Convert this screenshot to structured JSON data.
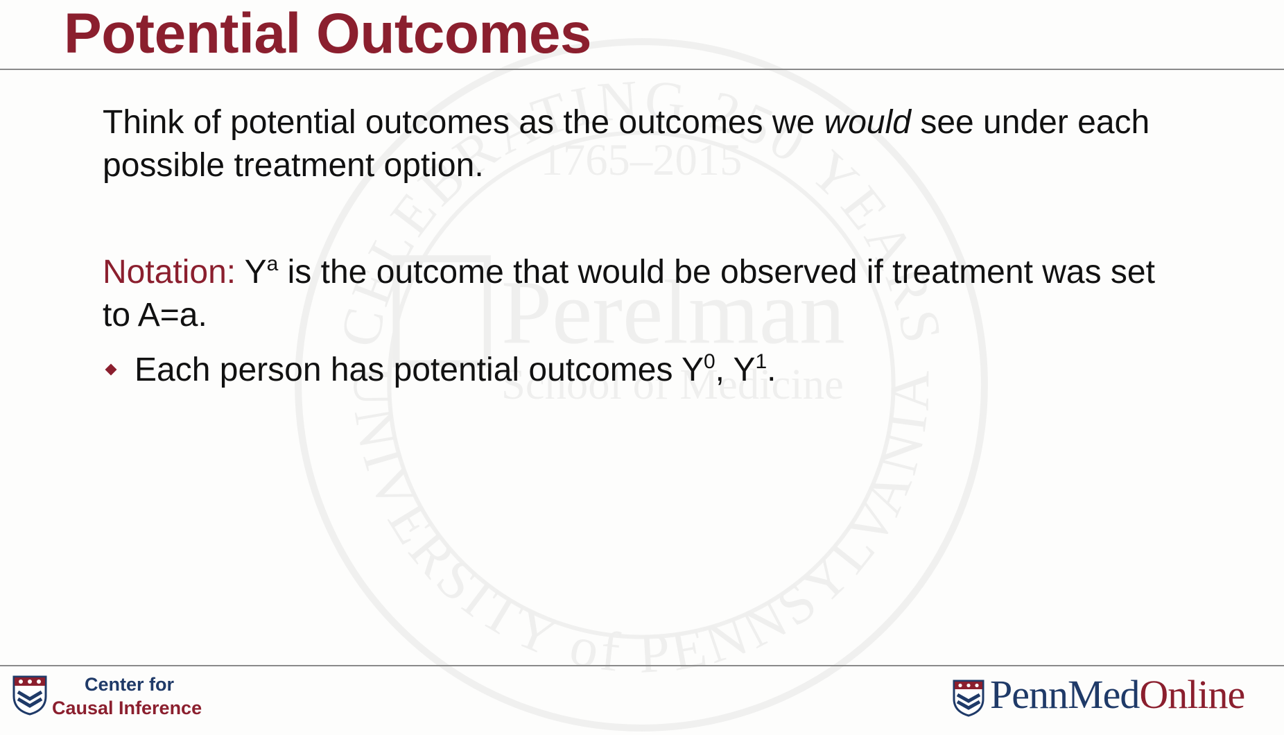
{
  "slide": {
    "title": "Potential Outcomes",
    "paragraph1": {
      "before": "Think of potential outcomes as the outcomes we ",
      "emphasis": "would",
      "after": " see under each possible treatment option."
    },
    "notation": {
      "label": "Notation:",
      "var": "Y",
      "sup": "a",
      "text": " is the outcome that would be observed if treatment was set to A=a."
    },
    "bullet": {
      "prefix": "Each person has potential outcomes Y",
      "sup1": "0",
      "mid": ", Y",
      "sup2": "1",
      "end": "."
    }
  },
  "footer": {
    "left_line1": "Center for",
    "left_line2": "Causal Inference",
    "right_penn": "Penn",
    "right_med": "Med",
    "right_online": "Online"
  },
  "watermark": {
    "ring_top": "CELEBRATING 250 YEARS",
    "years": "1765–2015",
    "name1": "Perelman",
    "name2": "School of Medicine",
    "ring_bottom": "UNIVERSITY of PENNSYLVANIA"
  },
  "colors": {
    "accent": "#8b1f2e",
    "navy": "#1f3a68",
    "text": "#111111"
  },
  "icons": {
    "penn_shield": "penn-shield-icon",
    "bullet": "diamond-bullet-icon"
  }
}
